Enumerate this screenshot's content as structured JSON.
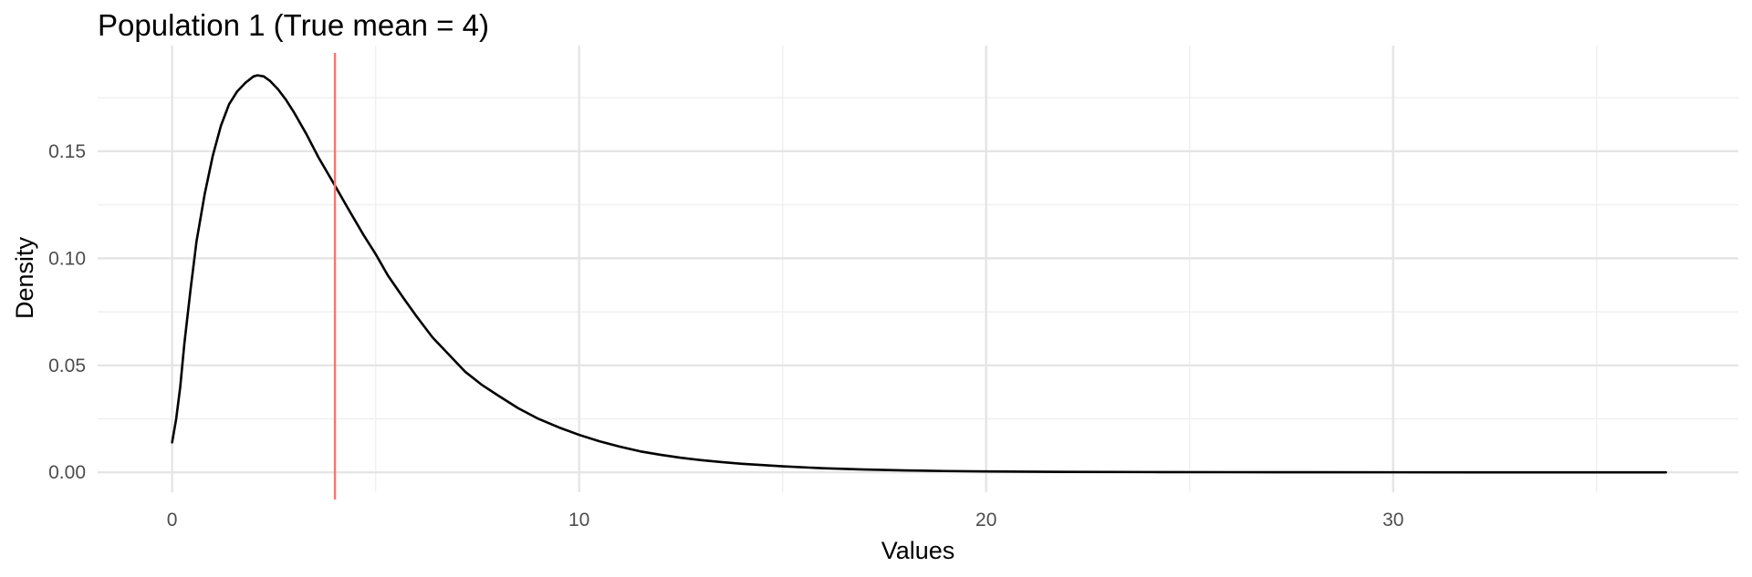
{
  "chart_data": {
    "type": "line",
    "title": "Population 1 (True mean = 4)",
    "xlabel": "Values",
    "ylabel": "Density",
    "xlim": [
      -1.83,
      38.48
    ],
    "ylim": [
      -0.0093,
      0.1994
    ],
    "x_ticks": [
      0,
      10,
      20,
      30
    ],
    "x_tick_labels": [
      "0",
      "10",
      "20",
      "30"
    ],
    "x_minor_ticks": [
      5,
      15,
      25,
      35
    ],
    "y_ticks": [
      0,
      0.05,
      0.1,
      0.15
    ],
    "y_tick_labels": [
      "0.00",
      "0.05",
      "0.10",
      "0.15"
    ],
    "y_minor_ticks": [
      0.025,
      0.075,
      0.125,
      0.175
    ],
    "grid": true,
    "legend": "none",
    "reference_line": {
      "x": 4,
      "color": "#F8766D"
    },
    "series": [
      {
        "color": "#000000",
        "x": [
          0,
          0.1,
          0.2,
          0.3,
          0.45,
          0.6,
          0.8,
          1.0,
          1.2,
          1.4,
          1.6,
          1.8,
          2.0,
          2.1,
          2.25,
          2.4,
          2.6,
          2.8,
          3.0,
          3.3,
          3.6,
          4.0,
          4.3,
          4.7,
          5.0,
          5.3,
          5.7,
          6.0,
          6.4,
          6.8,
          7.2,
          7.6,
          8.0,
          8.5,
          9.0,
          9.5,
          10.0,
          10.5,
          11.0,
          11.5,
          12.0,
          12.5,
          13.0,
          13.5,
          14.0,
          15.0,
          16.0,
          17.0,
          18.0,
          19.0,
          20.0,
          22.0,
          24.0,
          26.0,
          28.0,
          30.0,
          32.0,
          34.0,
          36.0,
          36.7
        ],
        "y": [
          0.014,
          0.025,
          0.04,
          0.06,
          0.085,
          0.108,
          0.13,
          0.148,
          0.162,
          0.172,
          0.178,
          0.182,
          0.185,
          0.1855,
          0.185,
          0.183,
          0.179,
          0.174,
          0.168,
          0.158,
          0.147,
          0.134,
          0.124,
          0.111,
          0.102,
          0.092,
          0.081,
          0.073,
          0.063,
          0.055,
          0.047,
          0.041,
          0.036,
          0.03,
          0.025,
          0.021,
          0.0175,
          0.0145,
          0.012,
          0.0098,
          0.0082,
          0.0068,
          0.0057,
          0.0048,
          0.004,
          0.0028,
          0.0019,
          0.0013,
          0.0009,
          0.0006,
          0.0004,
          0.0002,
          0.00012,
          7e-05,
          4e-05,
          2e-05,
          1e-05,
          5e-06,
          2e-06,
          1e-06
        ]
      }
    ]
  }
}
